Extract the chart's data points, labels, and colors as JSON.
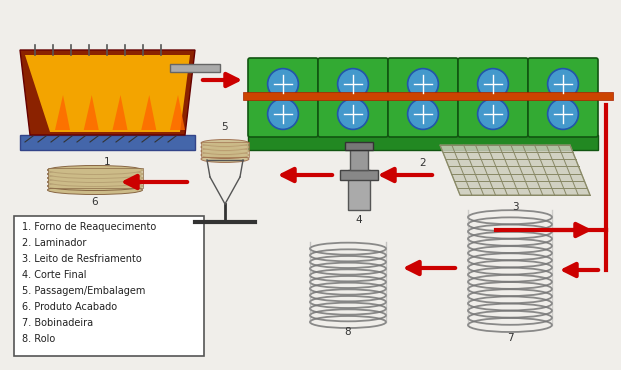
{
  "title": "",
  "background_color": "#f0eeea",
  "legend_items": [
    "1. Forno de Reaquecimento",
    "2. Laminador",
    "3. Leito de Resfriamento",
    "4. Corte Final",
    "5. Passagem/Embalagem",
    "6. Produto Acabado",
    "7. Bobinadeira",
    "8. Rolo"
  ],
  "arrow_color": "#cc0000",
  "label_fontsize": 7.5,
  "legend_fontsize": 7,
  "fig_width": 6.21,
  "fig_height": 3.7,
  "dpi": 100
}
